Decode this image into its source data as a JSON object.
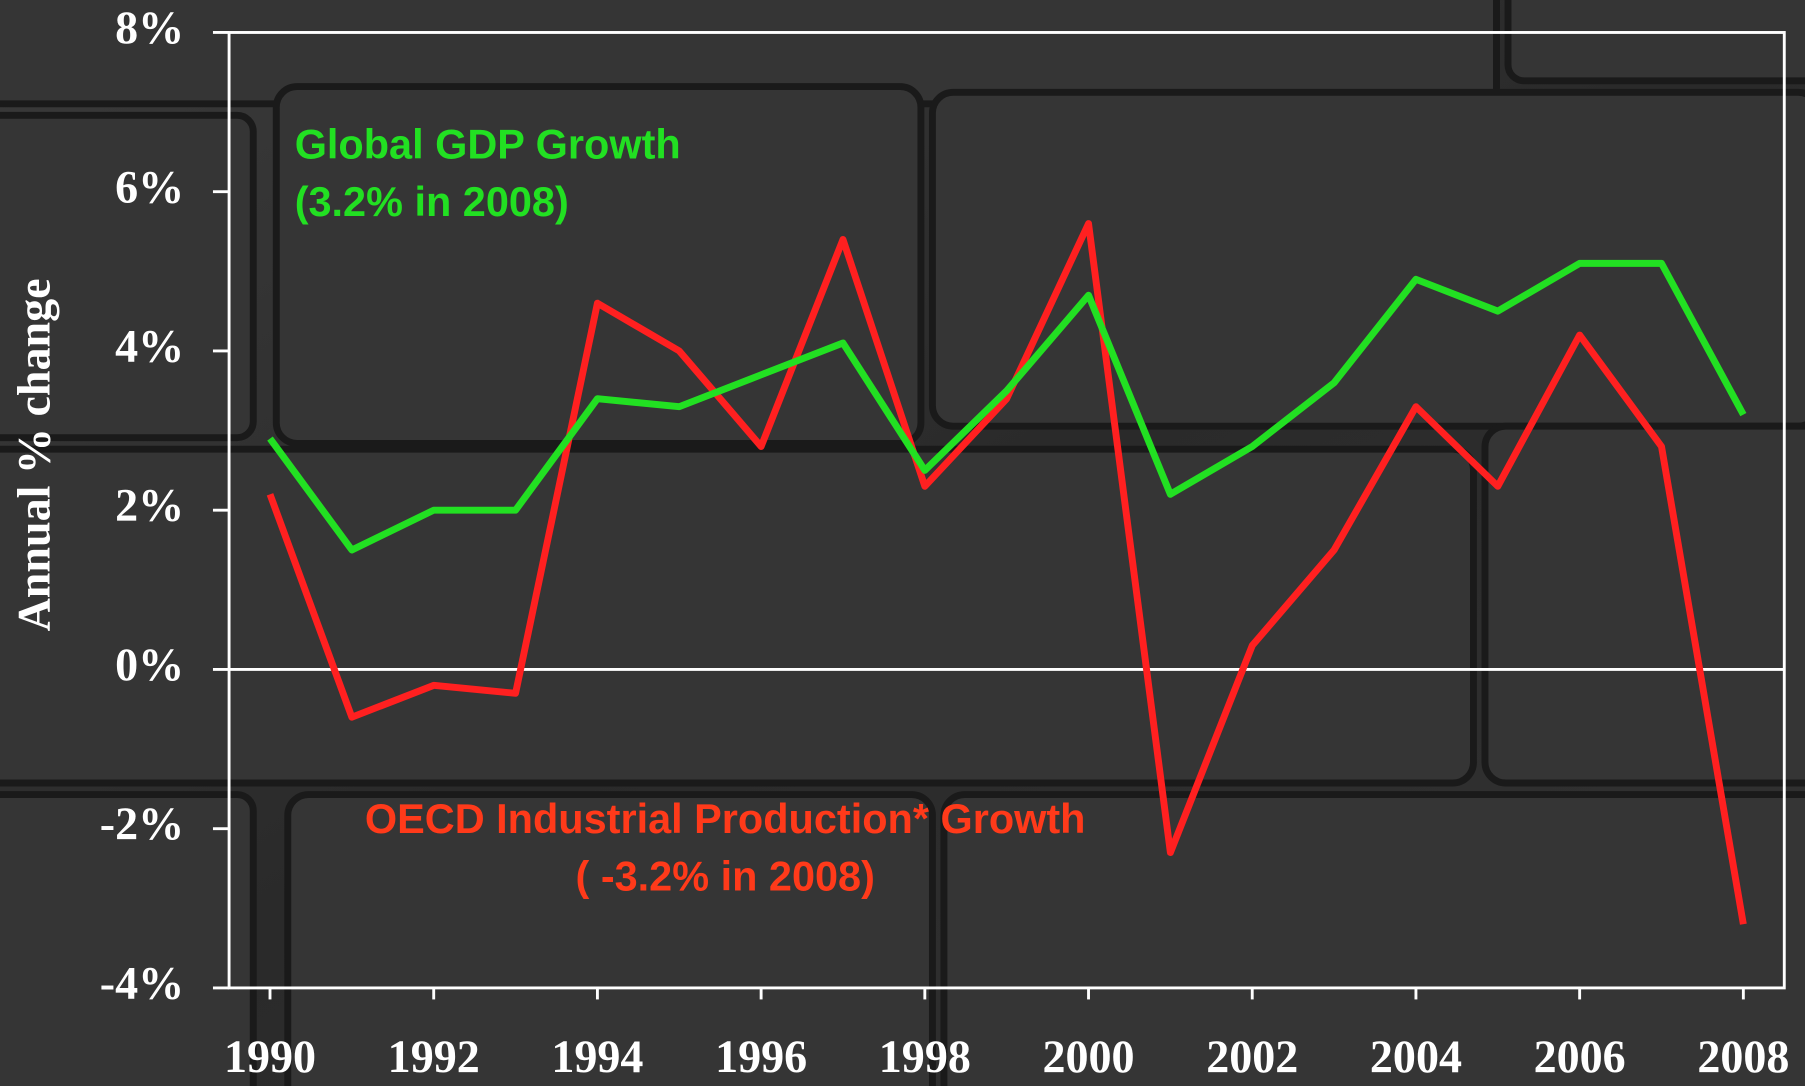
{
  "chart_data": {
    "type": "line",
    "y_label": "Annual % change",
    "x": [
      1990,
      1991,
      1992,
      1993,
      1994,
      1995,
      1996,
      1997,
      1998,
      1999,
      2000,
      2001,
      2002,
      2003,
      2004,
      2005,
      2006,
      2007,
      2008
    ],
    "series": [
      {
        "name": "Global GDP Growth",
        "color": "#22e022",
        "values": [
          2.9,
          1.5,
          2.0,
          2.0,
          3.4,
          3.3,
          3.7,
          4.1,
          2.5,
          3.5,
          4.7,
          2.2,
          2.8,
          3.6,
          4.9,
          4.5,
          5.1,
          5.1,
          3.2
        ]
      },
      {
        "name": "OECD Industrial Production* Growth",
        "color": "#ff2020",
        "values": [
          2.2,
          -0.6,
          -0.2,
          -0.3,
          4.6,
          4.0,
          2.8,
          5.4,
          2.3,
          3.4,
          5.6,
          -2.3,
          0.3,
          1.5,
          3.3,
          2.3,
          4.2,
          2.8,
          -3.2
        ]
      }
    ],
    "annotations": [
      "(3.2% in 2008)",
      "( -3.2% in 2008)"
    ],
    "xlim": [
      1989.5,
      2008.5
    ],
    "xticks": [
      1990,
      1992,
      1994,
      1996,
      1998,
      2000,
      2002,
      2004,
      2006,
      2008
    ],
    "ylim": [
      -4,
      8
    ],
    "yticks": [
      {
        "value": -4,
        "label": "-4%"
      },
      {
        "value": -2,
        "label": "-2%"
      },
      {
        "value": 0,
        "label": "0%"
      },
      {
        "value": 2,
        "label": "2%"
      },
      {
        "value": 4,
        "label": "4%"
      },
      {
        "value": 6,
        "label": "6%"
      },
      {
        "value": 8,
        "label": "8%"
      }
    ]
  }
}
